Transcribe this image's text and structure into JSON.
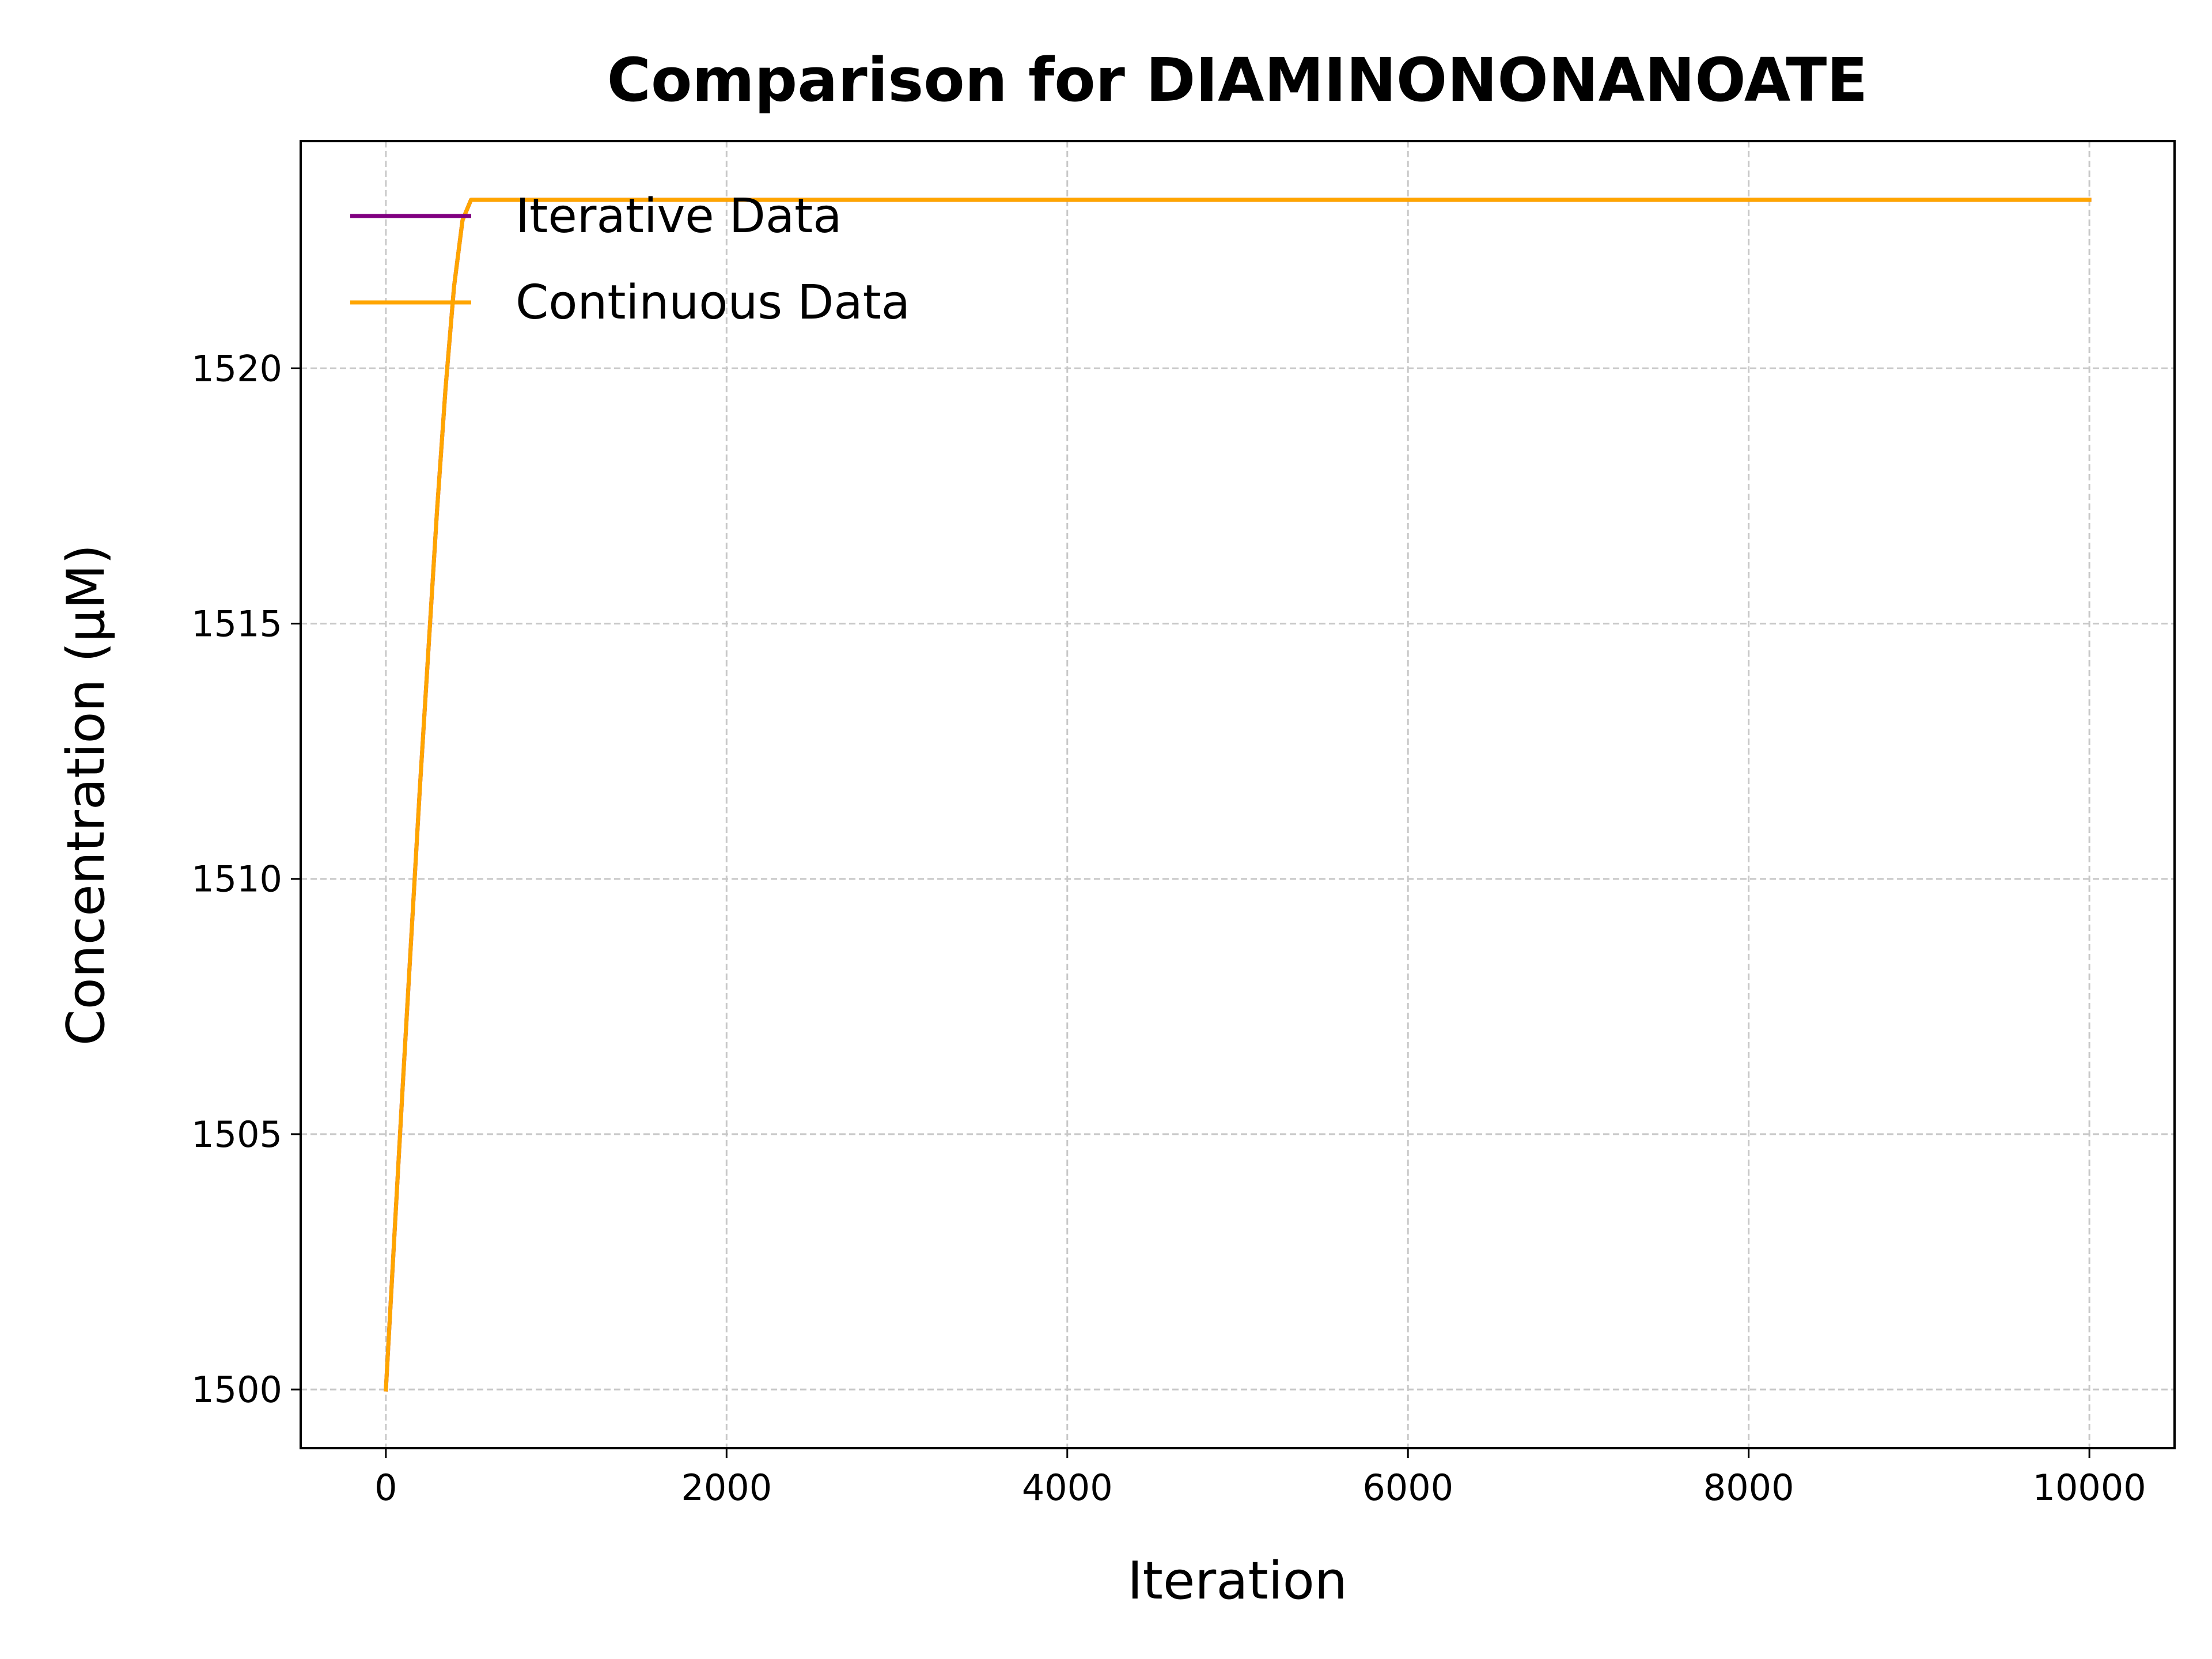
{
  "chart_data": {
    "type": "line",
    "title": "Comparison for DIAMINONONANOATE",
    "xlabel": "Iteration",
    "ylabel": "Concentration (μM)",
    "xlim": [
      -500,
      10500
    ],
    "ylim": [
      1498.85,
      1524.45
    ],
    "xticks": [
      0,
      2000,
      4000,
      6000,
      8000,
      10000
    ],
    "yticks": [
      1500,
      1505,
      1510,
      1515,
      1520
    ],
    "grid": true,
    "legend_position": "top-left",
    "series": [
      {
        "name": "Iterative Data",
        "color": "#800080",
        "x": [
          0,
          50,
          100,
          150,
          200,
          250,
          300,
          350,
          400,
          450,
          500,
          600,
          800,
          1000,
          2000,
          4000,
          6000,
          8000,
          10000
        ],
        "y": [
          1500,
          1503.0,
          1506.0,
          1508.9,
          1511.8,
          1514.5,
          1517.2,
          1519.6,
          1521.6,
          1522.9,
          1523.3,
          1523.3,
          1523.3,
          1523.3,
          1523.3,
          1523.3,
          1523.3,
          1523.3,
          1523.3
        ]
      },
      {
        "name": "Continuous Data",
        "color": "#FFA500",
        "x": [
          0,
          50,
          100,
          150,
          200,
          250,
          300,
          350,
          400,
          450,
          500,
          600,
          800,
          1000,
          2000,
          4000,
          6000,
          8000,
          10000
        ],
        "y": [
          1500,
          1503.0,
          1506.0,
          1508.9,
          1511.8,
          1514.5,
          1517.2,
          1519.6,
          1521.6,
          1522.9,
          1523.3,
          1523.3,
          1523.3,
          1523.3,
          1523.3,
          1523.3,
          1523.3,
          1523.3,
          1523.3
        ]
      }
    ]
  }
}
